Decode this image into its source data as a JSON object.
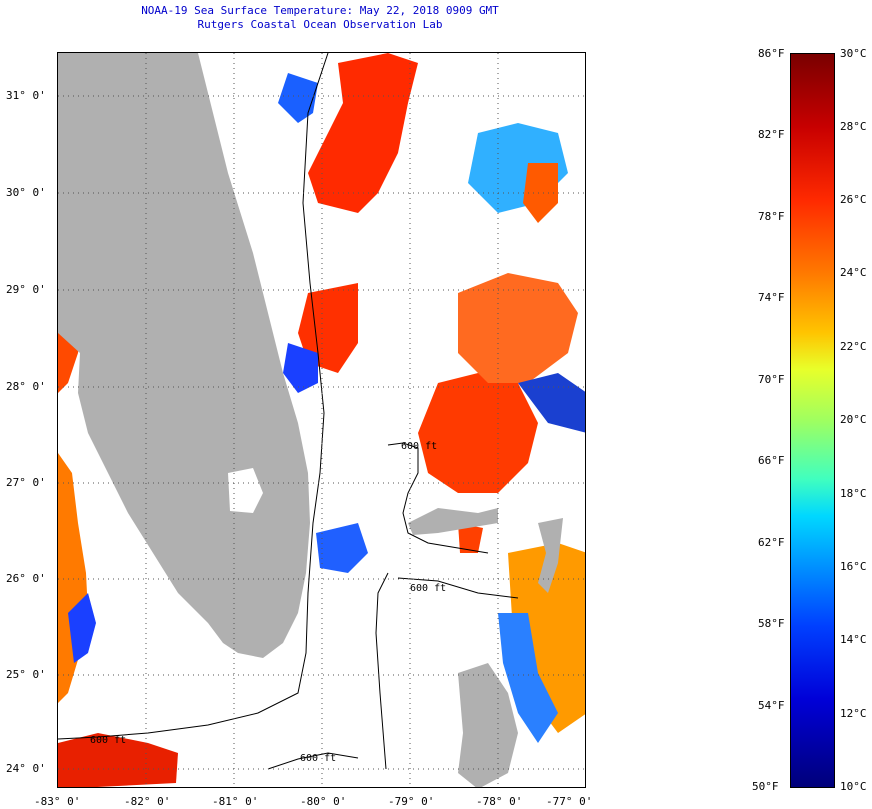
{
  "title": {
    "line1": "NOAA-19 Sea Surface Temperature:  May 22, 2018 0909 GMT",
    "line2": "Rutgers Coastal Ocean Observation Lab"
  },
  "axes": {
    "lat_labels": [
      "31° 0'",
      "30° 0'",
      "29° 0'",
      "28° 0'",
      "27° 0'",
      "26° 0'",
      "25° 0'",
      "24° 0'"
    ],
    "lon_labels": [
      "-83° 0'",
      "-82° 0'",
      "-81° 0'",
      "-80° 0'",
      "-79° 0'",
      "-78° 0'",
      "-77° 0'"
    ]
  },
  "contours": {
    "label": "600 ft"
  },
  "colorbar": {
    "fahrenheit_labels": [
      "86°F",
      "82°F",
      "78°F",
      "74°F",
      "70°F",
      "66°F",
      "62°F",
      "58°F",
      "54°F",
      "50°F"
    ],
    "celsius_labels": [
      "30°C",
      "28°C",
      "26°C",
      "24°C",
      "22°C",
      "20°C",
      "18°C",
      "16°C",
      "14°C",
      "12°C",
      "10°C"
    ],
    "colors": {
      "max": "#7a0000",
      "min": "#00007a"
    }
  },
  "colors": {
    "land": "#b0b0b0",
    "title": "#0000cc",
    "grid": "#555555"
  }
}
